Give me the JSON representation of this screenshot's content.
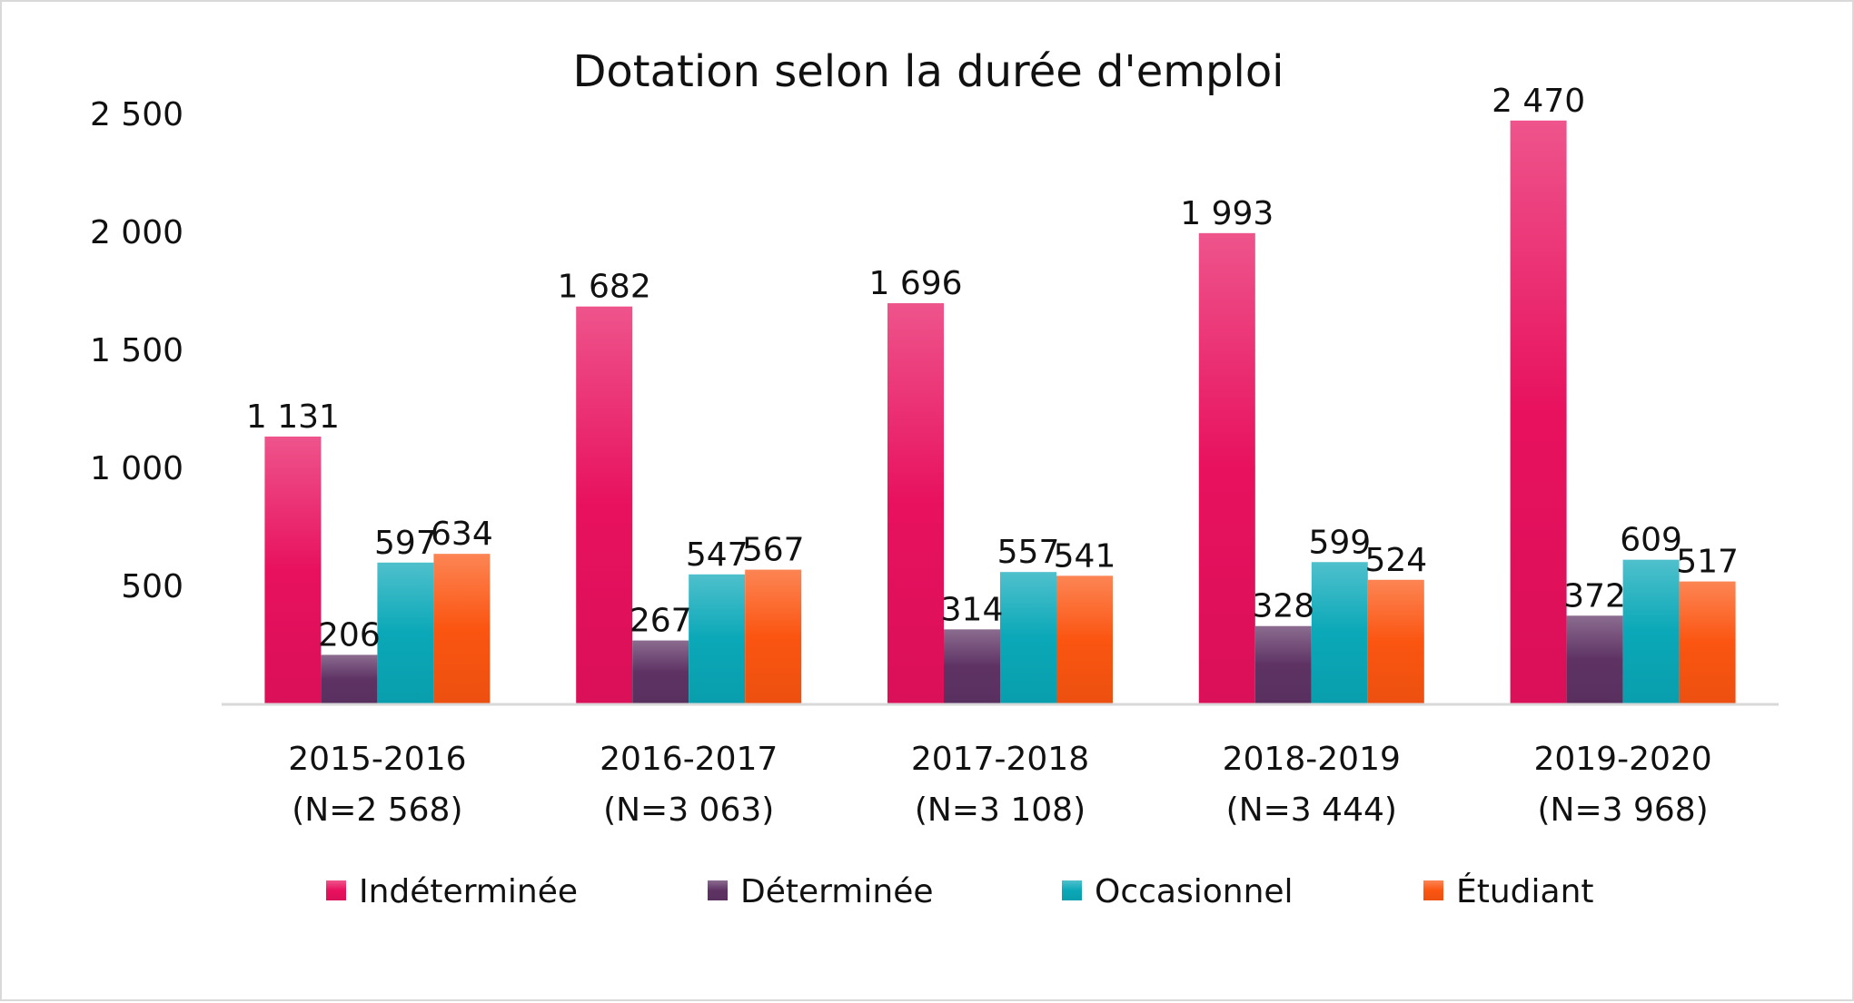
{
  "chart_data": {
    "type": "bar",
    "title": "Dotation selon la durée d'emploi",
    "categories": [
      [
        "2015-2016",
        "(N=2 568)"
      ],
      [
        "2016-2017",
        "(N=3 063)"
      ],
      [
        "2017-2018",
        "(N=3 108)"
      ],
      [
        "2018-2019",
        "(N=3 444)"
      ],
      [
        "2019-2020",
        "(N=3 968)"
      ]
    ],
    "series": [
      {
        "name": "Indéterminée",
        "color": "#e8115e",
        "values": [
          1131,
          1682,
          1696,
          1993,
          2470
        ],
        "labels": [
          "1 131",
          "1 682",
          "1 696",
          "1 993",
          "2 470"
        ]
      },
      {
        "name": "Déterminée",
        "color": "#5e3364",
        "values": [
          206,
          267,
          314,
          328,
          372
        ],
        "labels": [
          "206",
          "267",
          "314",
          "328",
          "372"
        ]
      },
      {
        "name": "Occasionnel",
        "color": "#0aa8b8",
        "values": [
          597,
          547,
          557,
          599,
          609
        ],
        "labels": [
          "597",
          "547",
          "557",
          "599",
          "609"
        ]
      },
      {
        "name": "Étudiant",
        "color": "#fb5511",
        "values": [
          634,
          567,
          541,
          524,
          517
        ],
        "labels": [
          "634",
          "567",
          "541",
          "524",
          "517"
        ]
      }
    ],
    "yticks": [
      500,
      1000,
      1500,
      2000,
      2500
    ],
    "ytick_labels": [
      "500",
      "1 000",
      "1 500",
      "2 000",
      "2 500"
    ],
    "ylim": [
      0,
      2500
    ],
    "grid": false,
    "legend": "bottom"
  }
}
